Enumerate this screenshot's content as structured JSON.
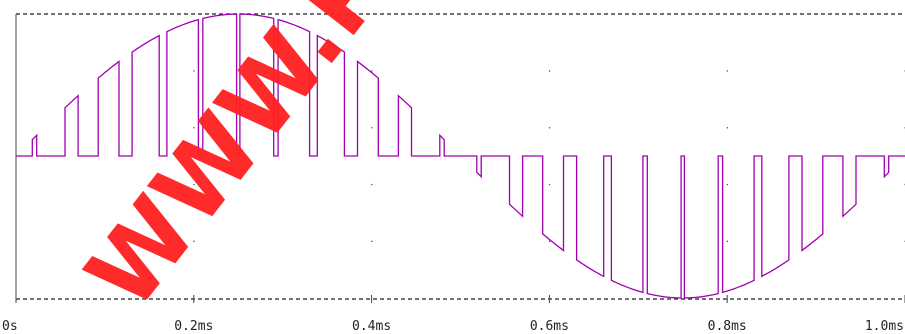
{
  "chart_data": {
    "type": "line",
    "title": "",
    "xlabel": "",
    "ylabel": "",
    "x_unit": "ms",
    "xlim": [
      0,
      1.0
    ],
    "ylim": [
      -1,
      1
    ],
    "x_ticks": [
      {
        "value": 0.0,
        "label": "0s"
      },
      {
        "value": 0.2,
        "label": "0.2ms"
      },
      {
        "value": 0.4,
        "label": "0.4ms"
      },
      {
        "value": 0.6,
        "label": "0.6ms"
      },
      {
        "value": 0.8,
        "label": "0.8ms"
      },
      {
        "value": 1.0,
        "label": "1.0ms"
      }
    ],
    "grid": "dotted",
    "series": [
      {
        "color": "#a000b0",
        "waveform": "unipolar-spwm",
        "carrier_pulses_per_half_cycle": 12,
        "fundamental_period_ms": 1.0,
        "amplitude": 1.0
      }
    ]
  },
  "watermark": {
    "text": "WWW.PO",
    "color": "#ff2020"
  },
  "colors": {
    "axis": "#444444",
    "grid": "#555555",
    "trace": "#a000b0"
  }
}
